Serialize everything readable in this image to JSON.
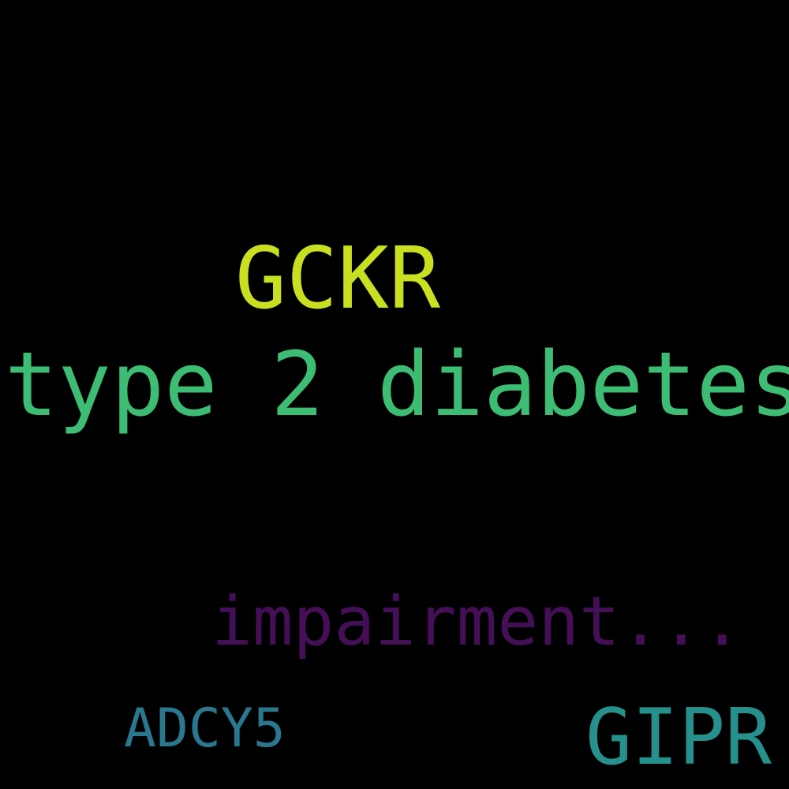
{
  "words": [
    {
      "text": "GCKR",
      "color": "#c8e020"
    },
    {
      "text": "type 2 diabetes",
      "color": "#3dbc74"
    },
    {
      "text": "impairment...",
      "color": "#440f56"
    },
    {
      "text": "ADCY5",
      "color": "#2a788e"
    },
    {
      "text": "GIPR",
      "color": "#26908c"
    }
  ],
  "background": "#000000"
}
